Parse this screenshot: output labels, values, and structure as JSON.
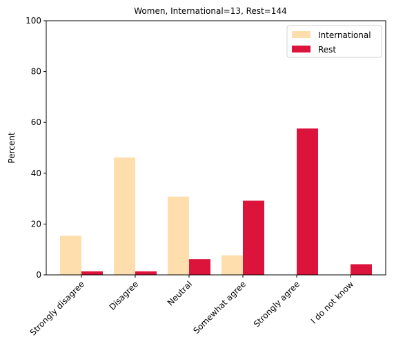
{
  "chart_data": {
    "type": "bar",
    "title": "Women, International=13, Rest=144",
    "xlabel": "",
    "ylabel": "Percent",
    "ylim": [
      0,
      100
    ],
    "yticks": [
      0,
      20,
      40,
      60,
      80,
      100
    ],
    "categories": [
      "Strongly disagree",
      "Disagree",
      "Neutral",
      "Somewhat agree",
      "Strongly agree",
      "I do not know"
    ],
    "series": [
      {
        "name": "International",
        "color": "#ffdead",
        "values": [
          15.4,
          46.2,
          30.8,
          7.7,
          0,
          0
        ]
      },
      {
        "name": "Rest",
        "color": "#dc143c",
        "values": [
          1.4,
          1.4,
          6.2,
          29.2,
          57.6,
          4.2
        ]
      }
    ],
    "legend": "top-right",
    "grid": false
  }
}
